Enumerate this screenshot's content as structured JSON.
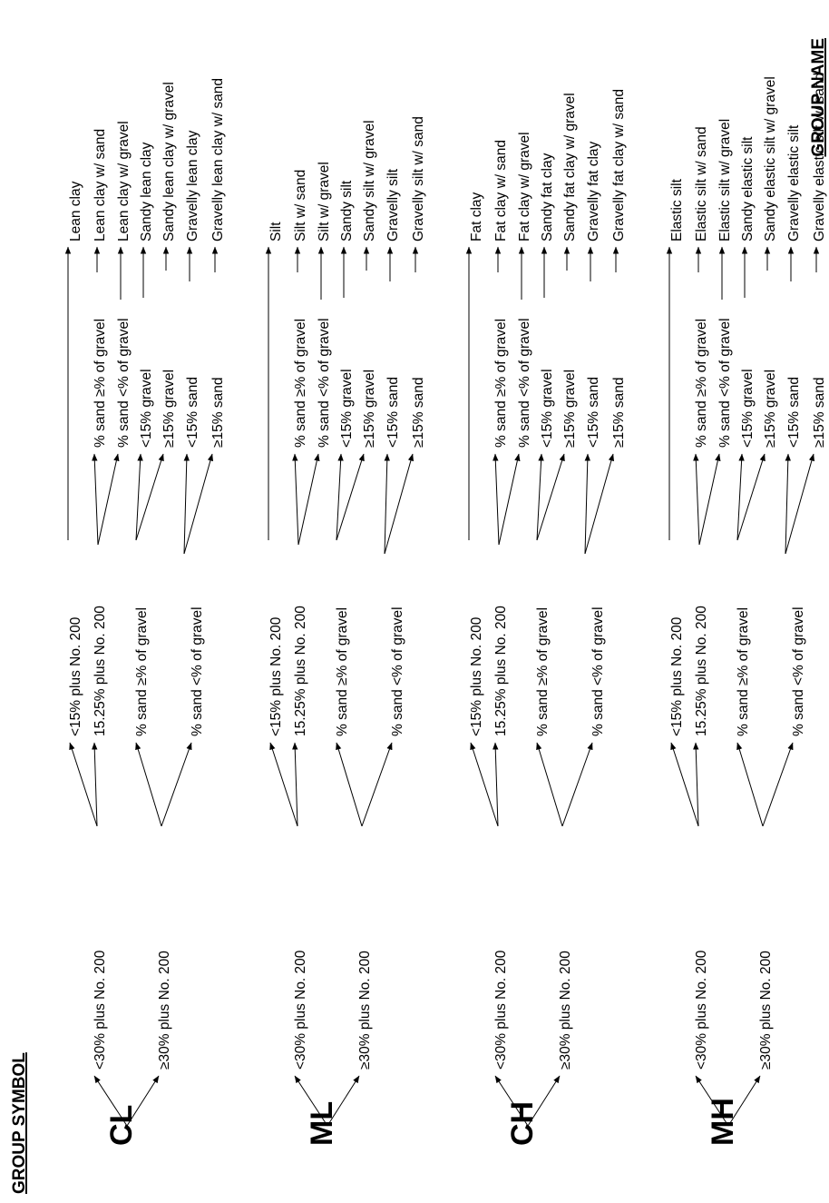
{
  "headers": {
    "left": "GROUP SYMBOL",
    "right": "GROUP NAME"
  },
  "groups": [
    {
      "symbol": "CL",
      "level1": [
        "<30% plus No. 200",
        "≥30% plus No. 200"
      ],
      "level2": [
        "<15% plus No. 200",
        "15.25% plus No. 200",
        "% sand ≥% of gravel",
        "% sand <% of gravel"
      ],
      "level3": [
        "% sand ≥% of gravel",
        "% sand <% of gravel",
        "<15% gravel",
        "≥15% gravel",
        "<15% sand",
        "≥15% sand"
      ],
      "names": [
        "Lean clay",
        "Lean clay w/ sand",
        "Lean clay w/ gravel",
        "Sandy lean clay",
        "Sandy lean clay w/ gravel",
        "Gravelly lean clay",
        "Gravelly lean clay w/ sand"
      ]
    },
    {
      "symbol": "ML",
      "level1": [
        "<30% plus No. 200",
        "≥30% plus No. 200"
      ],
      "level2": [
        "<15% plus No. 200",
        "15.25% plus No. 200",
        "% sand ≥% of gravel",
        "% sand <% of gravel"
      ],
      "level3": [
        "% sand ≥% of gravel",
        "% sand <% of gravel",
        "<15% gravel",
        "≥15% gravel",
        "<15% sand",
        "≥15% sand"
      ],
      "names": [
        "Silt",
        "Silt w/ sand",
        "Silt w/ gravel",
        "Sandy silt",
        "Sandy silt w/ gravel",
        "Gravelly silt",
        "Gravelly silt w/ sand"
      ]
    },
    {
      "symbol": "CH",
      "level1": [
        "<30% plus No. 200",
        "≥30% plus No. 200"
      ],
      "level2": [
        "<15% plus No. 200",
        "15.25% plus No. 200",
        "% sand ≥% of gravel",
        "% sand <% of gravel"
      ],
      "level3": [
        "% sand ≥% of gravel",
        "% sand <% of gravel",
        "<15% gravel",
        "≥15% gravel",
        "<15% sand",
        "≥15% sand"
      ],
      "names": [
        "Fat clay",
        "Fat clay w/ sand",
        "Fat clay w/ gravel",
        "Sandy fat clay",
        "Sandy fat clay w/ gravel",
        "Gravelly fat clay",
        "Gravelly fat clay w/ sand"
      ]
    },
    {
      "symbol": "MH",
      "level1": [
        "<30% plus No. 200",
        "≥30% plus No. 200"
      ],
      "level2": [
        "<15% plus No. 200",
        "15.25% plus No. 200",
        "% sand ≥% of gravel",
        "% sand <% of gravel"
      ],
      "level3": [
        "% sand ≥% of gravel",
        "% sand <% of gravel",
        "<15% gravel",
        "≥15% gravel",
        "<15% sand",
        "≥15% sand"
      ],
      "names": [
        "Elastic silt",
        "Elastic silt w/ sand",
        "Elastic silt w/ gravel",
        "Sandy elastic silt",
        "Sandy elastic silt w/ gravel",
        "Gravelly elastic silt",
        "Gravelly elastic silt w/ sand"
      ]
    }
  ]
}
